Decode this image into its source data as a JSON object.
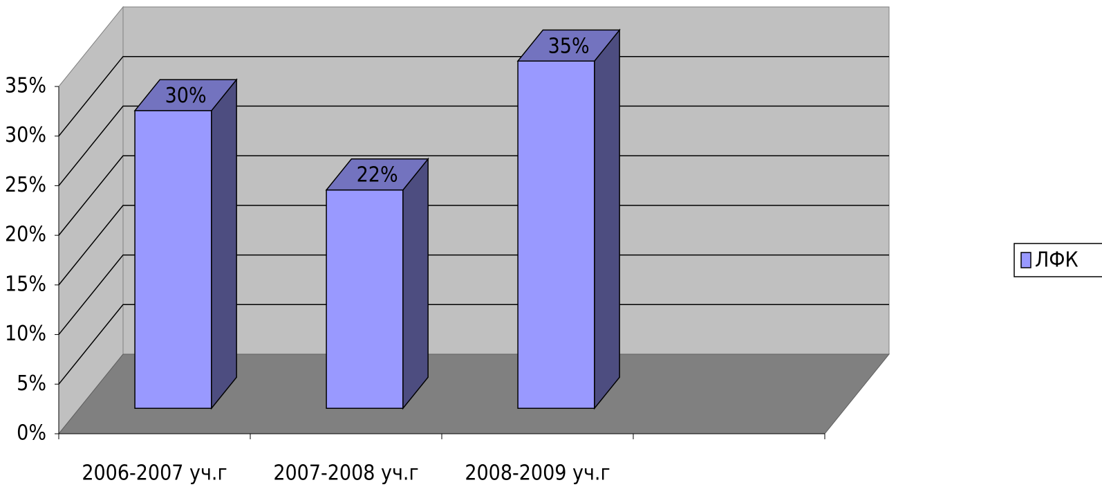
{
  "chart_data": {
    "type": "bar3d",
    "categories": [
      "2006-2007 уч.г",
      "2007-2008 уч.г",
      "2008-2009 уч.г",
      null
    ],
    "series": [
      {
        "name": "ЛФК",
        "color": "#9999ff",
        "values": [
          30,
          22,
          35,
          null
        ],
        "value_labels": [
          "30%",
          "22%",
          "35%",
          null
        ]
      }
    ],
    "ylim": [
      0,
      35
    ],
    "yticks": [
      {
        "value": 0,
        "label": "0%"
      },
      {
        "value": 5,
        "label": "5%"
      },
      {
        "value": 10,
        "label": "10%"
      },
      {
        "value": 15,
        "label": "15%"
      },
      {
        "value": 20,
        "label": "20%"
      },
      {
        "value": 25,
        "label": "25%"
      },
      {
        "value": 30,
        "label": "30%"
      },
      {
        "value": 35,
        "label": "35%"
      }
    ],
    "grid": true,
    "legend": "right"
  }
}
